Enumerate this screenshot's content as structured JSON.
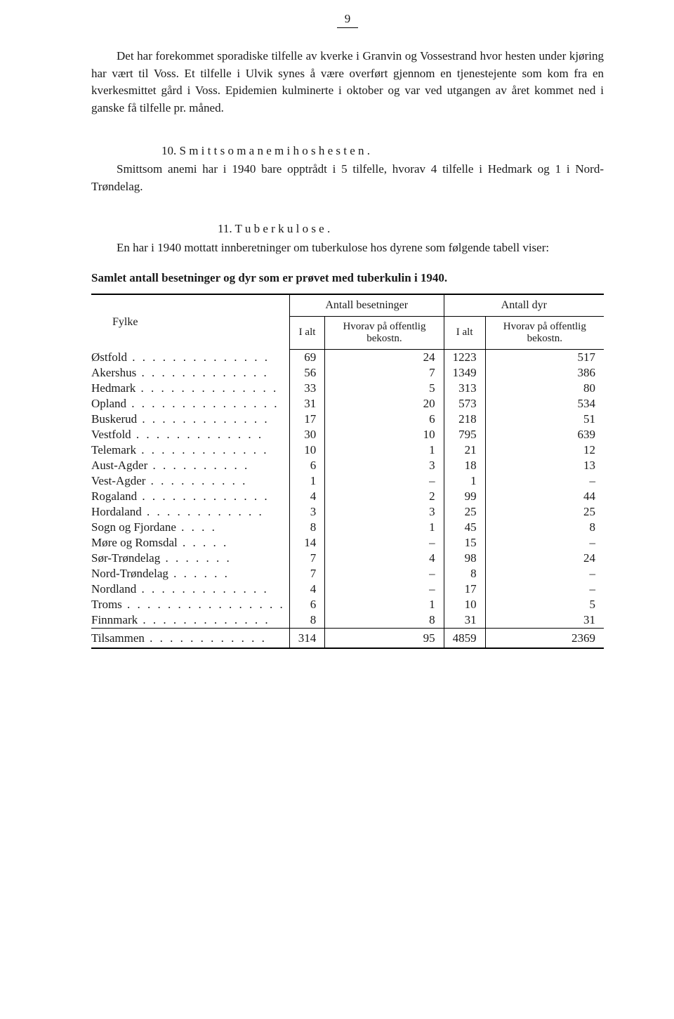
{
  "page_number": "9",
  "para1": "Det har forekommet sporadiske tilfelle av kverke i Granvin og Vossestrand hvor hesten under kjøring har vært til Voss. Et tilfelle i Ulvik synes å være overført gjennom en tjenestejente som kom fra en kverkesmittet gård i Voss. Epidemien kulminerte i oktober og var ved utgangen av året kommet ned i ganske få tilfelle pr. måned.",
  "section10_heading": "10.  S m i t t s o m   a n e m i   h o s   h e s t e n .",
  "section10_body": "Smittsom anemi har i 1940 bare opptrådt i 5 tilfelle, hvorav 4 tilfelle i Hedmark og 1 i Nord-Trøndelag.",
  "section11_heading": "11.  T u b e r k u l o s e .",
  "section11_body": "En har i 1940 mottatt innberetninger om tuberkulose hos dyrene som følgende tabell viser:",
  "table_title": "Samlet antall besetninger og dyr som er prøvet med tuberkulin i 1940.",
  "headers": {
    "fylke": "Fylke",
    "antall_besetninger": "Antall besetninger",
    "antall_dyr": "Antall dyr",
    "i_alt": "I alt",
    "hvorav": "Hvorav på offentlig bekostn."
  },
  "rows": [
    {
      "county": "Østfold",
      "c1": "69",
      "c2": "24",
      "c3": "1223",
      "c4": "517"
    },
    {
      "county": "Akershus",
      "c1": "56",
      "c2": "7",
      "c3": "1349",
      "c4": "386"
    },
    {
      "county": "Hedmark",
      "c1": "33",
      "c2": "5",
      "c3": "313",
      "c4": "80"
    },
    {
      "county": "Opland",
      "c1": "31",
      "c2": "20",
      "c3": "573",
      "c4": "534"
    },
    {
      "county": "Buskerud",
      "c1": "17",
      "c2": "6",
      "c3": "218",
      "c4": "51"
    },
    {
      "county": "Vestfold",
      "c1": "30",
      "c2": "10",
      "c3": "795",
      "c4": "639"
    },
    {
      "county": "Telemark",
      "c1": "10",
      "c2": "1",
      "c3": "21",
      "c4": "12"
    },
    {
      "county": "Aust-Agder",
      "c1": "6",
      "c2": "3",
      "c3": "18",
      "c4": "13"
    },
    {
      "county": "Vest-Agder",
      "c1": "1",
      "c2": "–",
      "c3": "1",
      "c4": "–"
    },
    {
      "county": "Rogaland",
      "c1": "4",
      "c2": "2",
      "c3": "99",
      "c4": "44"
    },
    {
      "county": "Hordaland",
      "c1": "3",
      "c2": "3",
      "c3": "25",
      "c4": "25"
    },
    {
      "county": "Sogn og Fjordane",
      "c1": "8",
      "c2": "1",
      "c3": "45",
      "c4": "8"
    },
    {
      "county": "Møre og Romsdal",
      "c1": "14",
      "c2": "–",
      "c3": "15",
      "c4": "–"
    },
    {
      "county": "Sør-Trøndelag",
      "c1": "7",
      "c2": "4",
      "c3": "98",
      "c4": "24"
    },
    {
      "county": "Nord-Trøndelag",
      "c1": "7",
      "c2": "–",
      "c3": "8",
      "c4": "–"
    },
    {
      "county": "Nordland",
      "c1": "4",
      "c2": "–",
      "c3": "17",
      "c4": "–"
    },
    {
      "county": "Troms",
      "c1": "6",
      "c2": "1",
      "c3": "10",
      "c4": "5"
    },
    {
      "county": "Finnmark",
      "c1": "8",
      "c2": "8",
      "c3": "31",
      "c4": "31"
    }
  ],
  "total": {
    "county": "Tilsammen",
    "c1": "314",
    "c2": "95",
    "c3": "4859",
    "c4": "2369"
  }
}
